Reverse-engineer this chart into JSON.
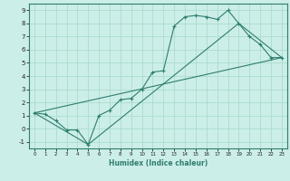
{
  "xlabel": "Humidex (Indice chaleur)",
  "bg_color": "#cceee8",
  "line_color": "#2e7d6e",
  "grid_color": "#aaddcc",
  "xlim": [
    -0.5,
    23.5
  ],
  "ylim": [
    -1.5,
    9.5
  ],
  "xticks": [
    0,
    1,
    2,
    3,
    4,
    5,
    6,
    7,
    8,
    9,
    10,
    11,
    12,
    13,
    14,
    15,
    16,
    17,
    18,
    19,
    20,
    21,
    22,
    23
  ],
  "yticks": [
    -1,
    0,
    1,
    2,
    3,
    4,
    5,
    6,
    7,
    8,
    9
  ],
  "line1_x": [
    0,
    1,
    2,
    3,
    4,
    5,
    6,
    7,
    8,
    9,
    10,
    11,
    12,
    13,
    14,
    15,
    16,
    17,
    18,
    19,
    20,
    21,
    22,
    23
  ],
  "line1_y": [
    1.2,
    1.1,
    0.6,
    -0.1,
    -0.1,
    -1.2,
    1.0,
    1.4,
    2.2,
    2.3,
    3.0,
    4.3,
    4.4,
    7.8,
    8.5,
    8.6,
    8.5,
    8.3,
    9.0,
    8.0,
    7.0,
    6.4,
    5.4,
    5.4
  ],
  "line2_x": [
    0,
    23
  ],
  "line2_y": [
    1.2,
    5.4
  ],
  "line3_x": [
    0,
    5,
    19,
    23
  ],
  "line3_y": [
    1.2,
    -1.2,
    8.0,
    5.4
  ]
}
